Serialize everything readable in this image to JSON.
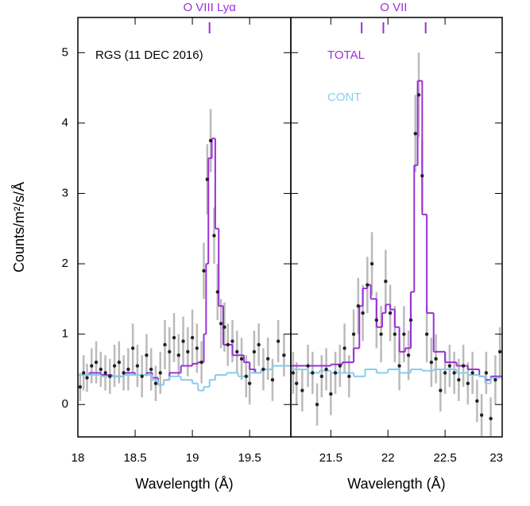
{
  "chart_data": [
    {
      "type": "step",
      "xlabel": "Wavelength (Å)",
      "ylabel": "Counts/m²/s/Å",
      "annotation": "RGS (11 DEC 2016)",
      "line_label": "O VIII Lyα",
      "line_positions": [
        19.15
      ],
      "line_color": "#9b30d9",
      "xlim": [
        18,
        19.86
      ],
      "xticks": [
        18,
        18.5,
        19,
        19.5
      ],
      "ylim": [
        -0.46,
        5.5
      ],
      "yticks": [
        0,
        1,
        2,
        3,
        4,
        5
      ],
      "series": [
        {
          "color": "#9b30d9",
          "x": [
            18.0,
            18.1,
            18.2,
            18.3,
            18.4,
            18.5,
            18.6,
            18.65,
            18.7,
            18.75,
            18.8,
            18.9,
            19.0,
            19.05,
            19.1,
            19.12,
            19.14,
            19.17,
            19.2,
            19.23,
            19.27,
            19.35,
            19.45,
            19.5,
            19.55,
            19.6,
            19.7,
            19.8
          ],
          "values": [
            0.42,
            0.45,
            0.42,
            0.4,
            0.45,
            0.42,
            0.45,
            0.38,
            0.28,
            0.35,
            0.45,
            0.55,
            0.58,
            0.6,
            1.0,
            2.0,
            3.5,
            3.78,
            2.5,
            1.4,
            0.85,
            0.7,
            0.6,
            0.5,
            0.45,
            0.5,
            0.55,
            0.55
          ]
        },
        {
          "color": "#87ceeb",
          "x": [
            18.0,
            18.2,
            18.4,
            18.6,
            18.65,
            18.7,
            18.75,
            18.8,
            18.9,
            19.0,
            19.05,
            19.1,
            19.15,
            19.2,
            19.3,
            19.4,
            19.5,
            19.6,
            19.7,
            19.8
          ],
          "values": [
            0.42,
            0.4,
            0.42,
            0.42,
            0.35,
            0.28,
            0.35,
            0.4,
            0.35,
            0.3,
            0.2,
            0.25,
            0.35,
            0.42,
            0.45,
            0.4,
            0.45,
            0.5,
            0.55,
            0.55
          ]
        }
      ],
      "points": {
        "color": "#222222",
        "error_color": "#bbbbbb",
        "x": [
          18.02,
          18.05,
          18.08,
          18.12,
          18.16,
          18.2,
          18.24,
          18.28,
          18.32,
          18.36,
          18.4,
          18.44,
          18.48,
          18.52,
          18.56,
          18.6,
          18.64,
          18.68,
          18.72,
          18.76,
          18.8,
          18.84,
          18.88,
          18.92,
          18.96,
          19.0,
          19.04,
          19.08,
          19.1,
          19.13,
          19.16,
          19.19,
          19.22,
          19.25,
          19.28,
          19.31,
          19.35,
          19.39,
          19.43,
          19.47,
          19.5,
          19.54,
          19.58,
          19.62,
          19.66,
          19.7,
          19.75,
          19.8
        ],
        "values": [
          0.25,
          0.45,
          0.38,
          0.55,
          0.6,
          0.5,
          0.45,
          0.4,
          0.55,
          0.6,
          0.45,
          0.5,
          0.8,
          0.55,
          0.4,
          0.7,
          0.5,
          0.3,
          0.45,
          0.85,
          0.75,
          0.95,
          0.7,
          0.9,
          0.75,
          0.95,
          0.8,
          0.6,
          1.9,
          3.2,
          3.75,
          2.4,
          1.6,
          1.15,
          1.1,
          0.85,
          0.9,
          0.75,
          0.65,
          0.4,
          0.3,
          0.75,
          0.85,
          0.5,
          0.65,
          0.35,
          0.9,
          0.7
        ],
        "errors": [
          0.2,
          0.25,
          0.2,
          0.25,
          0.3,
          0.25,
          0.25,
          0.25,
          0.3,
          0.3,
          0.25,
          0.3,
          0.35,
          0.3,
          0.3,
          0.3,
          0.3,
          0.25,
          0.3,
          0.35,
          0.35,
          0.35,
          0.3,
          0.35,
          0.35,
          0.4,
          0.35,
          0.3,
          0.4,
          0.5,
          0.45,
          0.4,
          0.4,
          0.35,
          0.35,
          0.3,
          0.3,
          0.3,
          0.3,
          0.3,
          0.3,
          0.3,
          0.3,
          0.3,
          0.3,
          0.3,
          0.3,
          0.3
        ]
      }
    },
    {
      "type": "step",
      "xlabel": "Wavelength (Å)",
      "line_label": "O VII",
      "line_positions": [
        21.77,
        21.96,
        22.33
      ],
      "line_color": "#9b30d9",
      "xlim": [
        21.15,
        23.0
      ],
      "xticks": [
        21.5,
        22,
        22.5,
        23
      ],
      "ylim": [
        -0.46,
        5.5
      ],
      "legend": "upper left",
      "series": [
        {
          "name": "TOTAL",
          "color": "#9b30d9",
          "x": [
            21.15,
            21.3,
            21.4,
            21.5,
            21.6,
            21.7,
            21.75,
            21.78,
            21.82,
            21.85,
            21.9,
            21.95,
            21.98,
            22.02,
            22.06,
            22.1,
            22.15,
            22.2,
            22.23,
            22.26,
            22.3,
            22.34,
            22.4,
            22.5,
            22.6,
            22.7,
            22.8,
            22.85,
            22.9
          ],
          "values": [
            0.55,
            0.55,
            0.55,
            0.57,
            0.6,
            0.8,
            1.4,
            1.65,
            1.7,
            1.5,
            1.1,
            1.3,
            1.42,
            1.35,
            1.1,
            0.75,
            0.8,
            1.6,
            3.4,
            4.6,
            2.7,
            1.3,
            0.75,
            0.6,
            0.55,
            0.5,
            0.4,
            0.35,
            0.4
          ]
        },
        {
          "name": "CONT",
          "color": "#87ceeb",
          "x": [
            21.15,
            21.3,
            21.4,
            21.5,
            21.6,
            21.7,
            21.8,
            21.9,
            22.0,
            22.1,
            22.2,
            22.3,
            22.4,
            22.5,
            22.6,
            22.7,
            22.8,
            22.85,
            22.9
          ],
          "values": [
            0.5,
            0.45,
            0.48,
            0.45,
            0.45,
            0.4,
            0.5,
            0.45,
            0.5,
            0.45,
            0.5,
            0.48,
            0.5,
            0.5,
            0.45,
            0.42,
            0.4,
            0.3,
            0.38
          ]
        }
      ],
      "points": {
        "color": "#222222",
        "error_color": "#bbbbbb",
        "x": [
          21.17,
          21.2,
          21.25,
          21.3,
          21.34,
          21.38,
          21.42,
          21.46,
          21.5,
          21.54,
          21.58,
          21.62,
          21.66,
          21.7,
          21.74,
          21.78,
          21.82,
          21.86,
          21.9,
          21.94,
          21.98,
          22.02,
          22.06,
          22.1,
          22.14,
          22.18,
          22.2,
          22.24,
          22.27,
          22.3,
          22.34,
          22.38,
          22.42,
          22.46,
          22.5,
          22.54,
          22.58,
          22.62,
          22.66,
          22.7,
          22.74,
          22.78,
          22.82,
          22.86,
          22.9,
          22.94,
          22.98
        ],
        "values": [
          0.45,
          0.3,
          0.2,
          0.55,
          0.45,
          0.0,
          0.4,
          0.5,
          0.15,
          0.45,
          0.55,
          0.8,
          0.4,
          1.0,
          1.4,
          1.3,
          1.7,
          2.0,
          1.2,
          1.0,
          1.75,
          1.3,
          1.0,
          0.55,
          1.0,
          0.7,
          1.2,
          3.85,
          4.4,
          3.25,
          1.0,
          0.6,
          0.65,
          0.2,
          0.45,
          0.55,
          0.45,
          0.35,
          0.55,
          0.3,
          0.45,
          0.05,
          -0.15,
          0.45,
          -0.2,
          0.35,
          0.75
        ],
        "errors": [
          0.3,
          0.3,
          0.3,
          0.3,
          0.3,
          0.3,
          0.3,
          0.3,
          0.3,
          0.3,
          0.3,
          0.35,
          0.3,
          0.35,
          0.4,
          0.4,
          0.4,
          0.45,
          0.4,
          0.4,
          0.45,
          0.4,
          0.4,
          0.35,
          0.4,
          0.35,
          0.4,
          0.55,
          0.6,
          0.5,
          0.4,
          0.35,
          0.35,
          0.3,
          0.3,
          0.3,
          0.3,
          0.3,
          0.3,
          0.3,
          0.3,
          0.3,
          0.3,
          0.3,
          0.3,
          0.35,
          0.35
        ]
      }
    }
  ]
}
